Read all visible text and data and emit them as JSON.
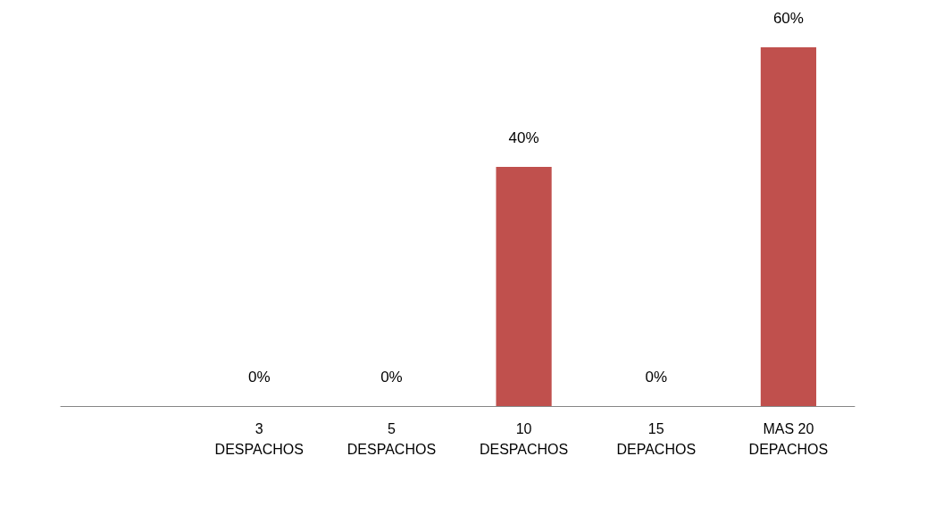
{
  "chart_data": {
    "type": "bar",
    "categories": [
      null,
      "3\nDESPACHOS",
      "5\nDESPACHOS",
      "10\nDESPACHOS",
      "15\nDEPACHOS",
      "MAS 20\nDEPACHOS"
    ],
    "values": [
      null,
      0,
      0,
      40,
      0,
      60
    ],
    "value_labels": [
      null,
      "0%",
      "0%",
      "40%",
      "0%",
      "60%"
    ],
    "color": "#c0504d"
  }
}
